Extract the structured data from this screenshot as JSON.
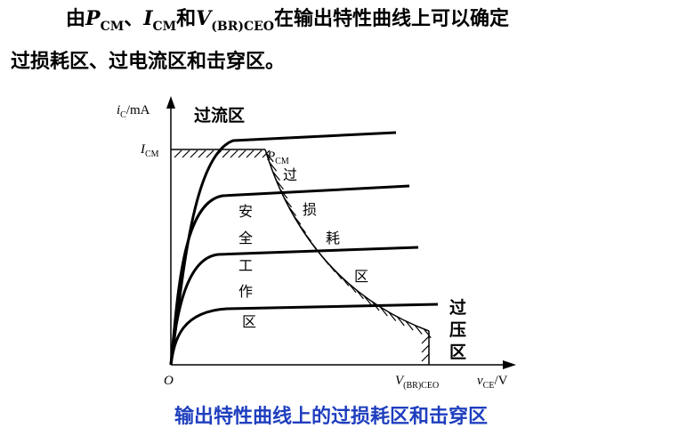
{
  "heading": {
    "line1": [
      "由",
      "P",
      "CM",
      "、",
      "I",
      "CM",
      "和",
      "V",
      "(BR)CEO",
      "在输出特性曲线上可以确定"
    ],
    "line2": "过损耗区、过电流区和击穿区。"
  },
  "axes": {
    "y_label": [
      "i",
      "C",
      "/mA"
    ],
    "x_label": [
      "v",
      "CE",
      "/V"
    ],
    "origin": "O",
    "icm": [
      "I",
      "CM"
    ],
    "pcm": [
      "P",
      "CM"
    ],
    "vbr": [
      "V",
      "(BR)CEO"
    ]
  },
  "regions": {
    "over_current": "过流区",
    "over_loss": [
      "过",
      "损",
      "耗",
      "区"
    ],
    "safe": [
      "安",
      "全",
      "工",
      "作",
      "区"
    ],
    "over_voltage": [
      "过",
      "压",
      "区"
    ]
  },
  "caption": "输出特性曲线上的过损耗区和击穿区"
}
